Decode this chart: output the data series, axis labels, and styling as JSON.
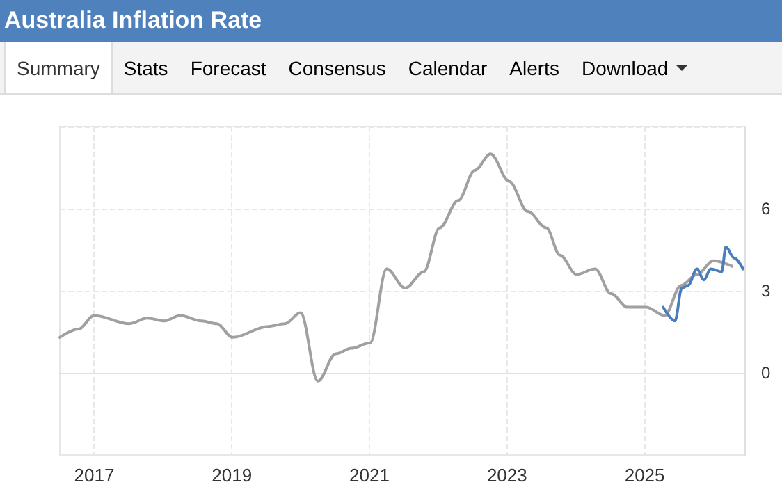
{
  "chart_data": {
    "type": "line",
    "title": "Australia Inflation Rate",
    "annotations": [
      "Summary",
      "Stats",
      "Forecast",
      "Consensus",
      "Calendar",
      "Alerts",
      "Download"
    ],
    "series": [
      {
        "color": "#a0a0a0",
        "x": [
          2016.5,
          2016.77,
          2017.0,
          2017.51,
          2017.77,
          2018.02,
          2018.25,
          2018.56,
          2018.78,
          2019.01,
          2019.53,
          2019.77,
          2020.0,
          2020.25,
          2020.51,
          2020.74,
          2021.01,
          2021.25,
          2021.52,
          2021.79,
          2022.02,
          2022.29,
          2022.53,
          2022.76,
          2023.03,
          2023.3,
          2023.57,
          2023.77,
          2024.01,
          2024.28,
          2024.51,
          2024.75,
          2025.02,
          2025.29,
          2025.53,
          2025.76,
          2026.0,
          2026.27
        ],
        "values": [
          1.3,
          1.6,
          2.1,
          1.8,
          2.0,
          1.9,
          2.1,
          1.9,
          1.8,
          1.3,
          1.7,
          1.8,
          2.2,
          -0.3,
          0.7,
          0.9,
          1.1,
          3.8,
          3.1,
          3.7,
          5.3,
          6.3,
          7.4,
          8.0,
          7.0,
          5.9,
          5.3,
          4.3,
          3.6,
          3.8,
          2.9,
          2.4,
          2.4,
          2.1,
          3.2,
          3.6,
          4.1,
          3.9
        ]
      },
      {
        "color": "#4a7ebb",
        "x": [
          2025.27,
          2025.44,
          2025.54,
          2025.63,
          2025.76,
          2025.86,
          2025.96,
          2026.12,
          2026.18,
          2026.3,
          2026.43
        ],
        "values": [
          2.4,
          1.9,
          3.1,
          3.2,
          3.8,
          3.4,
          3.8,
          3.7,
          4.6,
          4.2,
          3.8
        ]
      }
    ],
    "xlim": [
      2016.5,
      2026.45
    ],
    "xticks": [
      2017,
      2019,
      2021,
      2023,
      2025
    ],
    "ylim": [
      -3,
      9
    ],
    "yticks": [
      {
        "value": -3,
        "label": null
      },
      0,
      3,
      6,
      {
        "value": 9,
        "label": null
      }
    ],
    "grid": true,
    "marker": "none",
    "line_style": "solid"
  }
}
